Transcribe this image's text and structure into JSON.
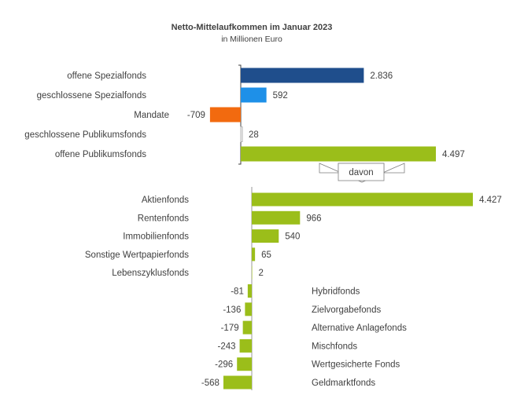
{
  "chart_data": [
    {
      "type": "bar",
      "orientation": "horizontal",
      "title": "Netto-Mittelaufkommen im Januar 2023",
      "subtitle": "in Millionen Euro",
      "categories": [
        "offene Spezialfonds",
        "geschlossene Spezialfonds",
        "Mandate",
        "geschlossene Publikumsfonds",
        "offene Publikumsfonds"
      ],
      "values": [
        2836,
        592,
        -709,
        28,
        4497
      ],
      "value_labels": [
        "2.836",
        "592",
        "-709",
        "28",
        "4.497"
      ],
      "colors": [
        "#1F4E8C",
        "#1E90E8",
        "#F26A0F",
        "#C8C8C8",
        "#9BBE1A"
      ],
      "grid": false
    },
    {
      "type": "bar",
      "orientation": "horizontal",
      "connector_label": "davon",
      "categories": [
        "Aktienfonds",
        "Rentenfonds",
        "Immobilienfonds",
        "Sonstige Wertpapierfonds",
        "Lebenszyklusfonds",
        "Hybridfonds",
        "Zielvorgabefonds",
        "Alternative Anlagefonds",
        "Mischfonds",
        "Wertgesicherte Fonds",
        "Geldmarktfonds"
      ],
      "values": [
        4427,
        966,
        540,
        65,
        2,
        -81,
        -136,
        -179,
        -243,
        -296,
        -568
      ],
      "value_labels": [
        "4.427",
        "966",
        "540",
        "65",
        "2",
        "-81",
        "-136",
        "-179",
        "-243",
        "-296",
        "-568"
      ],
      "colors": [
        "#9BBE1A"
      ],
      "grid": false
    }
  ]
}
